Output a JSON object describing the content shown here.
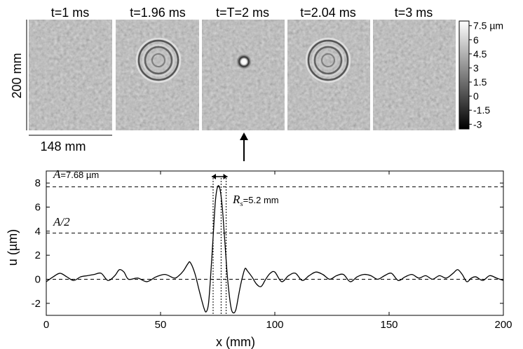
{
  "panels": [
    {
      "time_label": "t=1 ms",
      "pattern": "noise"
    },
    {
      "time_label": "t=1.96 ms",
      "pattern": "rings"
    },
    {
      "time_label": "t=T=2 ms",
      "pattern": "spot"
    },
    {
      "time_label": "t=2.04 ms",
      "pattern": "rings"
    },
    {
      "time_label": "t=3 ms",
      "pattern": "noise"
    }
  ],
  "scale_bars": {
    "vertical": "200 mm",
    "horizontal": "148 mm"
  },
  "colorbar": {
    "ticks": [
      "7.5 µm",
      "6",
      "4.5",
      "3",
      "1.5",
      "0",
      "-1.5",
      "-3"
    ],
    "min": -3.5,
    "max": 8
  },
  "annotations": {
    "amplitude_symbol": "A",
    "amplitude_value": "=7.68 µm",
    "half_amplitude": "A/2",
    "radius_symbol": "R",
    "radius_subscript": "s",
    "radius_value": "=5.2 mm"
  },
  "chart_data": {
    "type": "line",
    "xlabel": "x (mm)",
    "ylabel": "u (µm)",
    "xlim": [
      0,
      200
    ],
    "ylim": [
      -3,
      9
    ],
    "xticks": [
      0,
      50,
      100,
      150,
      200
    ],
    "yticks": [
      -2,
      0,
      2,
      4,
      6,
      8
    ],
    "reference_lines": {
      "A": 7.68,
      "half_A": 3.84,
      "zero": 0
    },
    "width_markers_x": [
      73,
      76.5,
      78.7
    ],
    "series": [
      {
        "name": "",
        "x": [
          0,
          3,
          6,
          9,
          12,
          15,
          18,
          21,
          24,
          27,
          30,
          32,
          34,
          36,
          40,
          44,
          48,
          52,
          56,
          58,
          60,
          62,
          63,
          65,
          67,
          69,
          70,
          71,
          72,
          73,
          74,
          75,
          76,
          77,
          78,
          79,
          80,
          81,
          82,
          83,
          84,
          85,
          86,
          87,
          88,
          90,
          92,
          94,
          96,
          98,
          100,
          103,
          106,
          109,
          112,
          115,
          118,
          121,
          124,
          127,
          130,
          133,
          136,
          139,
          142,
          145,
          148,
          151,
          154,
          157,
          160,
          163,
          166,
          169,
          172,
          175,
          178,
          180,
          182,
          184,
          186,
          188,
          191,
          194,
          197,
          200
        ],
        "y": [
          -0.2,
          0.2,
          0.5,
          0.2,
          -0.1,
          0.2,
          0.3,
          0.4,
          0.5,
          -0.1,
          0.3,
          0.8,
          0.6,
          0.0,
          0.1,
          -0.2,
          0.2,
          0.4,
          0.1,
          0.3,
          0.7,
          1.3,
          1.4,
          0.5,
          -1.0,
          -2.4,
          -2.7,
          -2.0,
          0.5,
          3.5,
          6.5,
          7.7,
          7.5,
          6.0,
          3.5,
          0.8,
          -1.2,
          -2.5,
          -2.8,
          -2.5,
          -1.5,
          -0.5,
          0.3,
          0.9,
          0.7,
          0.2,
          -0.4,
          -0.6,
          0.0,
          0.5,
          0.6,
          -0.2,
          0.3,
          0.5,
          -0.1,
          0.3,
          0.6,
          0.4,
          0.0,
          0.3,
          0.4,
          -0.2,
          0.2,
          0.4,
          0.3,
          0.0,
          0.3,
          0.5,
          -0.1,
          0.2,
          0.4,
          0.1,
          0.3,
          0.0,
          0.3,
          0.1,
          0.5,
          0.8,
          0.4,
          -0.2,
          0.1,
          0.2,
          -0.1,
          0.3,
          0.1,
          -0.1
        ]
      }
    ]
  }
}
